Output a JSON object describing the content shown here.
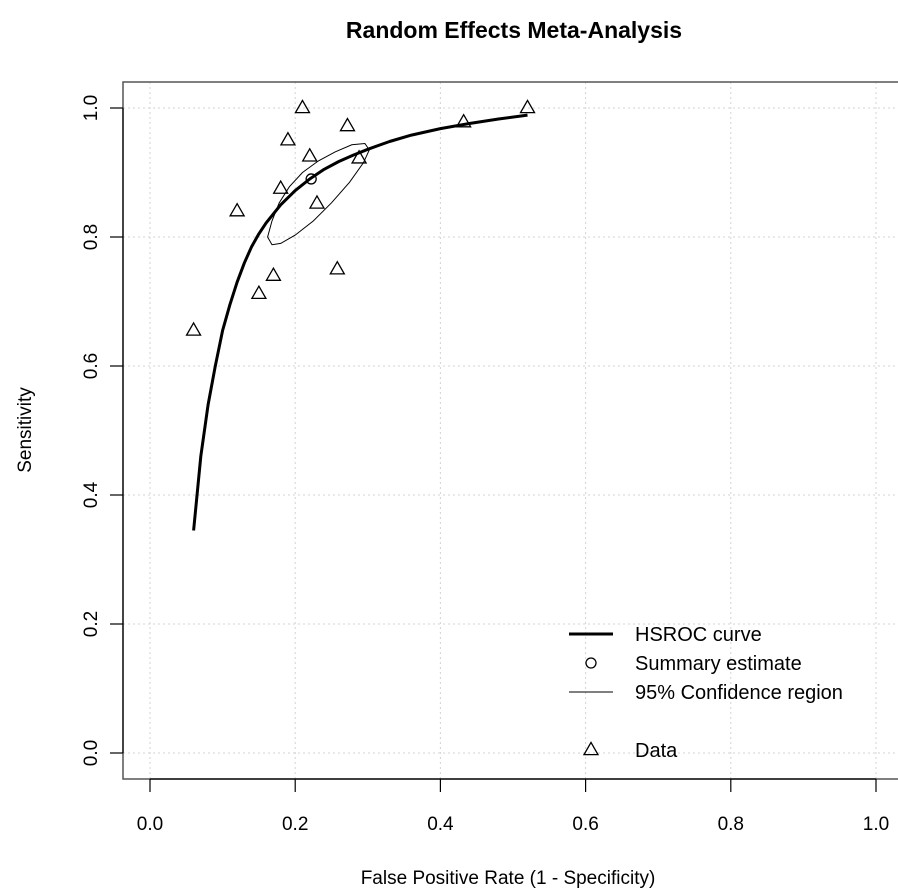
{
  "chart_data": {
    "type": "scatter",
    "title": "Random Effects Meta-Analysis",
    "xlabel": "False Positive Rate (1 - Specificity)",
    "ylabel": "Sensitivity",
    "xlim": [
      0.0,
      1.0
    ],
    "ylim": [
      0.0,
      1.0
    ],
    "x_ticks": [
      "0.0",
      "0.2",
      "0.4",
      "0.6",
      "0.8",
      "1.0"
    ],
    "y_ticks": [
      "0.0",
      "0.2",
      "0.4",
      "0.6",
      "0.8",
      "1.0"
    ],
    "grid": true,
    "legend_position": "bottom-right",
    "legend": [
      {
        "label": "HSROC curve",
        "symbol": "thick-line"
      },
      {
        "label": "Summary estimate",
        "symbol": "circle"
      },
      {
        "label": "95% Confidence region",
        "symbol": "thin-line"
      },
      {
        "label": "Data",
        "symbol": "triangle"
      }
    ],
    "data_points": [
      {
        "x": 0.06,
        "y": 0.655
      },
      {
        "x": 0.12,
        "y": 0.84
      },
      {
        "x": 0.15,
        "y": 0.712
      },
      {
        "x": 0.17,
        "y": 0.74
      },
      {
        "x": 0.18,
        "y": 0.875
      },
      {
        "x": 0.19,
        "y": 0.95
      },
      {
        "x": 0.21,
        "y": 1.0
      },
      {
        "x": 0.22,
        "y": 0.925
      },
      {
        "x": 0.23,
        "y": 0.852
      },
      {
        "x": 0.258,
        "y": 0.75
      },
      {
        "x": 0.272,
        "y": 0.972
      },
      {
        "x": 0.288,
        "y": 0.922
      },
      {
        "x": 0.432,
        "y": 0.978
      },
      {
        "x": 0.52,
        "y": 1.0
      }
    ],
    "summary_estimate": {
      "x": 0.222,
      "y": 0.89
    },
    "hsroc_curve": {
      "x": [
        0.06,
        0.07,
        0.08,
        0.09,
        0.1,
        0.11,
        0.12,
        0.13,
        0.14,
        0.15,
        0.16,
        0.18,
        0.2,
        0.22,
        0.24,
        0.26,
        0.28,
        0.3,
        0.33,
        0.36,
        0.4,
        0.44,
        0.48,
        0.52
      ],
      "y": [
        0.345,
        0.46,
        0.54,
        0.6,
        0.655,
        0.695,
        0.73,
        0.76,
        0.785,
        0.805,
        0.822,
        0.85,
        0.872,
        0.89,
        0.905,
        0.917,
        0.927,
        0.936,
        0.948,
        0.958,
        0.968,
        0.976,
        0.983,
        0.989
      ]
    },
    "confidence_region": {
      "x": [
        0.162,
        0.168,
        0.178,
        0.192,
        0.21,
        0.232,
        0.255,
        0.278,
        0.296,
        0.302,
        0.294,
        0.275,
        0.25,
        0.225,
        0.2,
        0.18,
        0.168,
        0.162
      ],
      "y": [
        0.8,
        0.825,
        0.853,
        0.878,
        0.9,
        0.918,
        0.932,
        0.943,
        0.945,
        0.935,
        0.915,
        0.885,
        0.853,
        0.825,
        0.803,
        0.79,
        0.788,
        0.8
      ]
    }
  }
}
